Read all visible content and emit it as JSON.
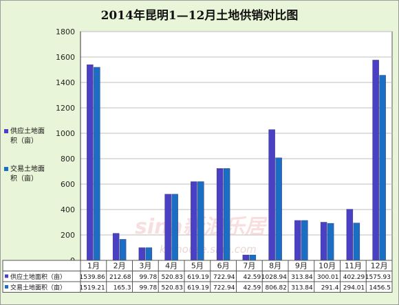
{
  "chart_data": {
    "type": "bar",
    "title": "2014年昆明1—12月土地供销对比图",
    "categories": [
      "1月",
      "2月",
      "3月",
      "4月",
      "5月",
      "6月",
      "7月",
      "8月",
      "9月",
      "10月",
      "11月",
      "12月"
    ],
    "series": [
      {
        "name": "供应土地面积（亩）",
        "color": "#4a40c4",
        "values": [
          1539.86,
          212.68,
          99.78,
          520.83,
          619.19,
          722.94,
          42.59,
          1028.94,
          313.84,
          300.01,
          402.29,
          1575.93
        ],
        "table_values": [
          "1539.86",
          "212.68",
          "99.78",
          "520.83",
          "619.19",
          "722.94",
          "42.59",
          "1028.94",
          "313.84",
          "300.01",
          "402.29",
          "1575.93"
        ]
      },
      {
        "name": "交易土地面积（亩）",
        "color": "#1a6fc4",
        "values": [
          1519.21,
          165.3,
          99.78,
          520.83,
          619.19,
          722.94,
          42.59,
          806.82,
          313.84,
          291.4,
          294.01,
          1456.5
        ],
        "table_values": [
          "1519.21",
          "165.3",
          "99.78",
          "520.83",
          "619.19",
          "722.94",
          "42.59",
          "806.82",
          "313.84",
          "291.4",
          "294.01",
          "1456.5"
        ]
      }
    ],
    "legend_lines": [
      [
        "供应土地面",
        "积（亩）"
      ],
      [
        "交易土地面",
        "积（亩）"
      ]
    ],
    "table_labels": [
      "供应土地面积（亩）",
      "交易土地面积（亩）"
    ],
    "ylim": [
      0,
      1800
    ],
    "yticks": [
      0,
      200,
      400,
      600,
      800,
      1000,
      1200,
      1400,
      1600,
      1800
    ],
    "grid": true,
    "legend_position": "left",
    "watermark": "sina新浪乐居 kmhouse.sina.com"
  }
}
